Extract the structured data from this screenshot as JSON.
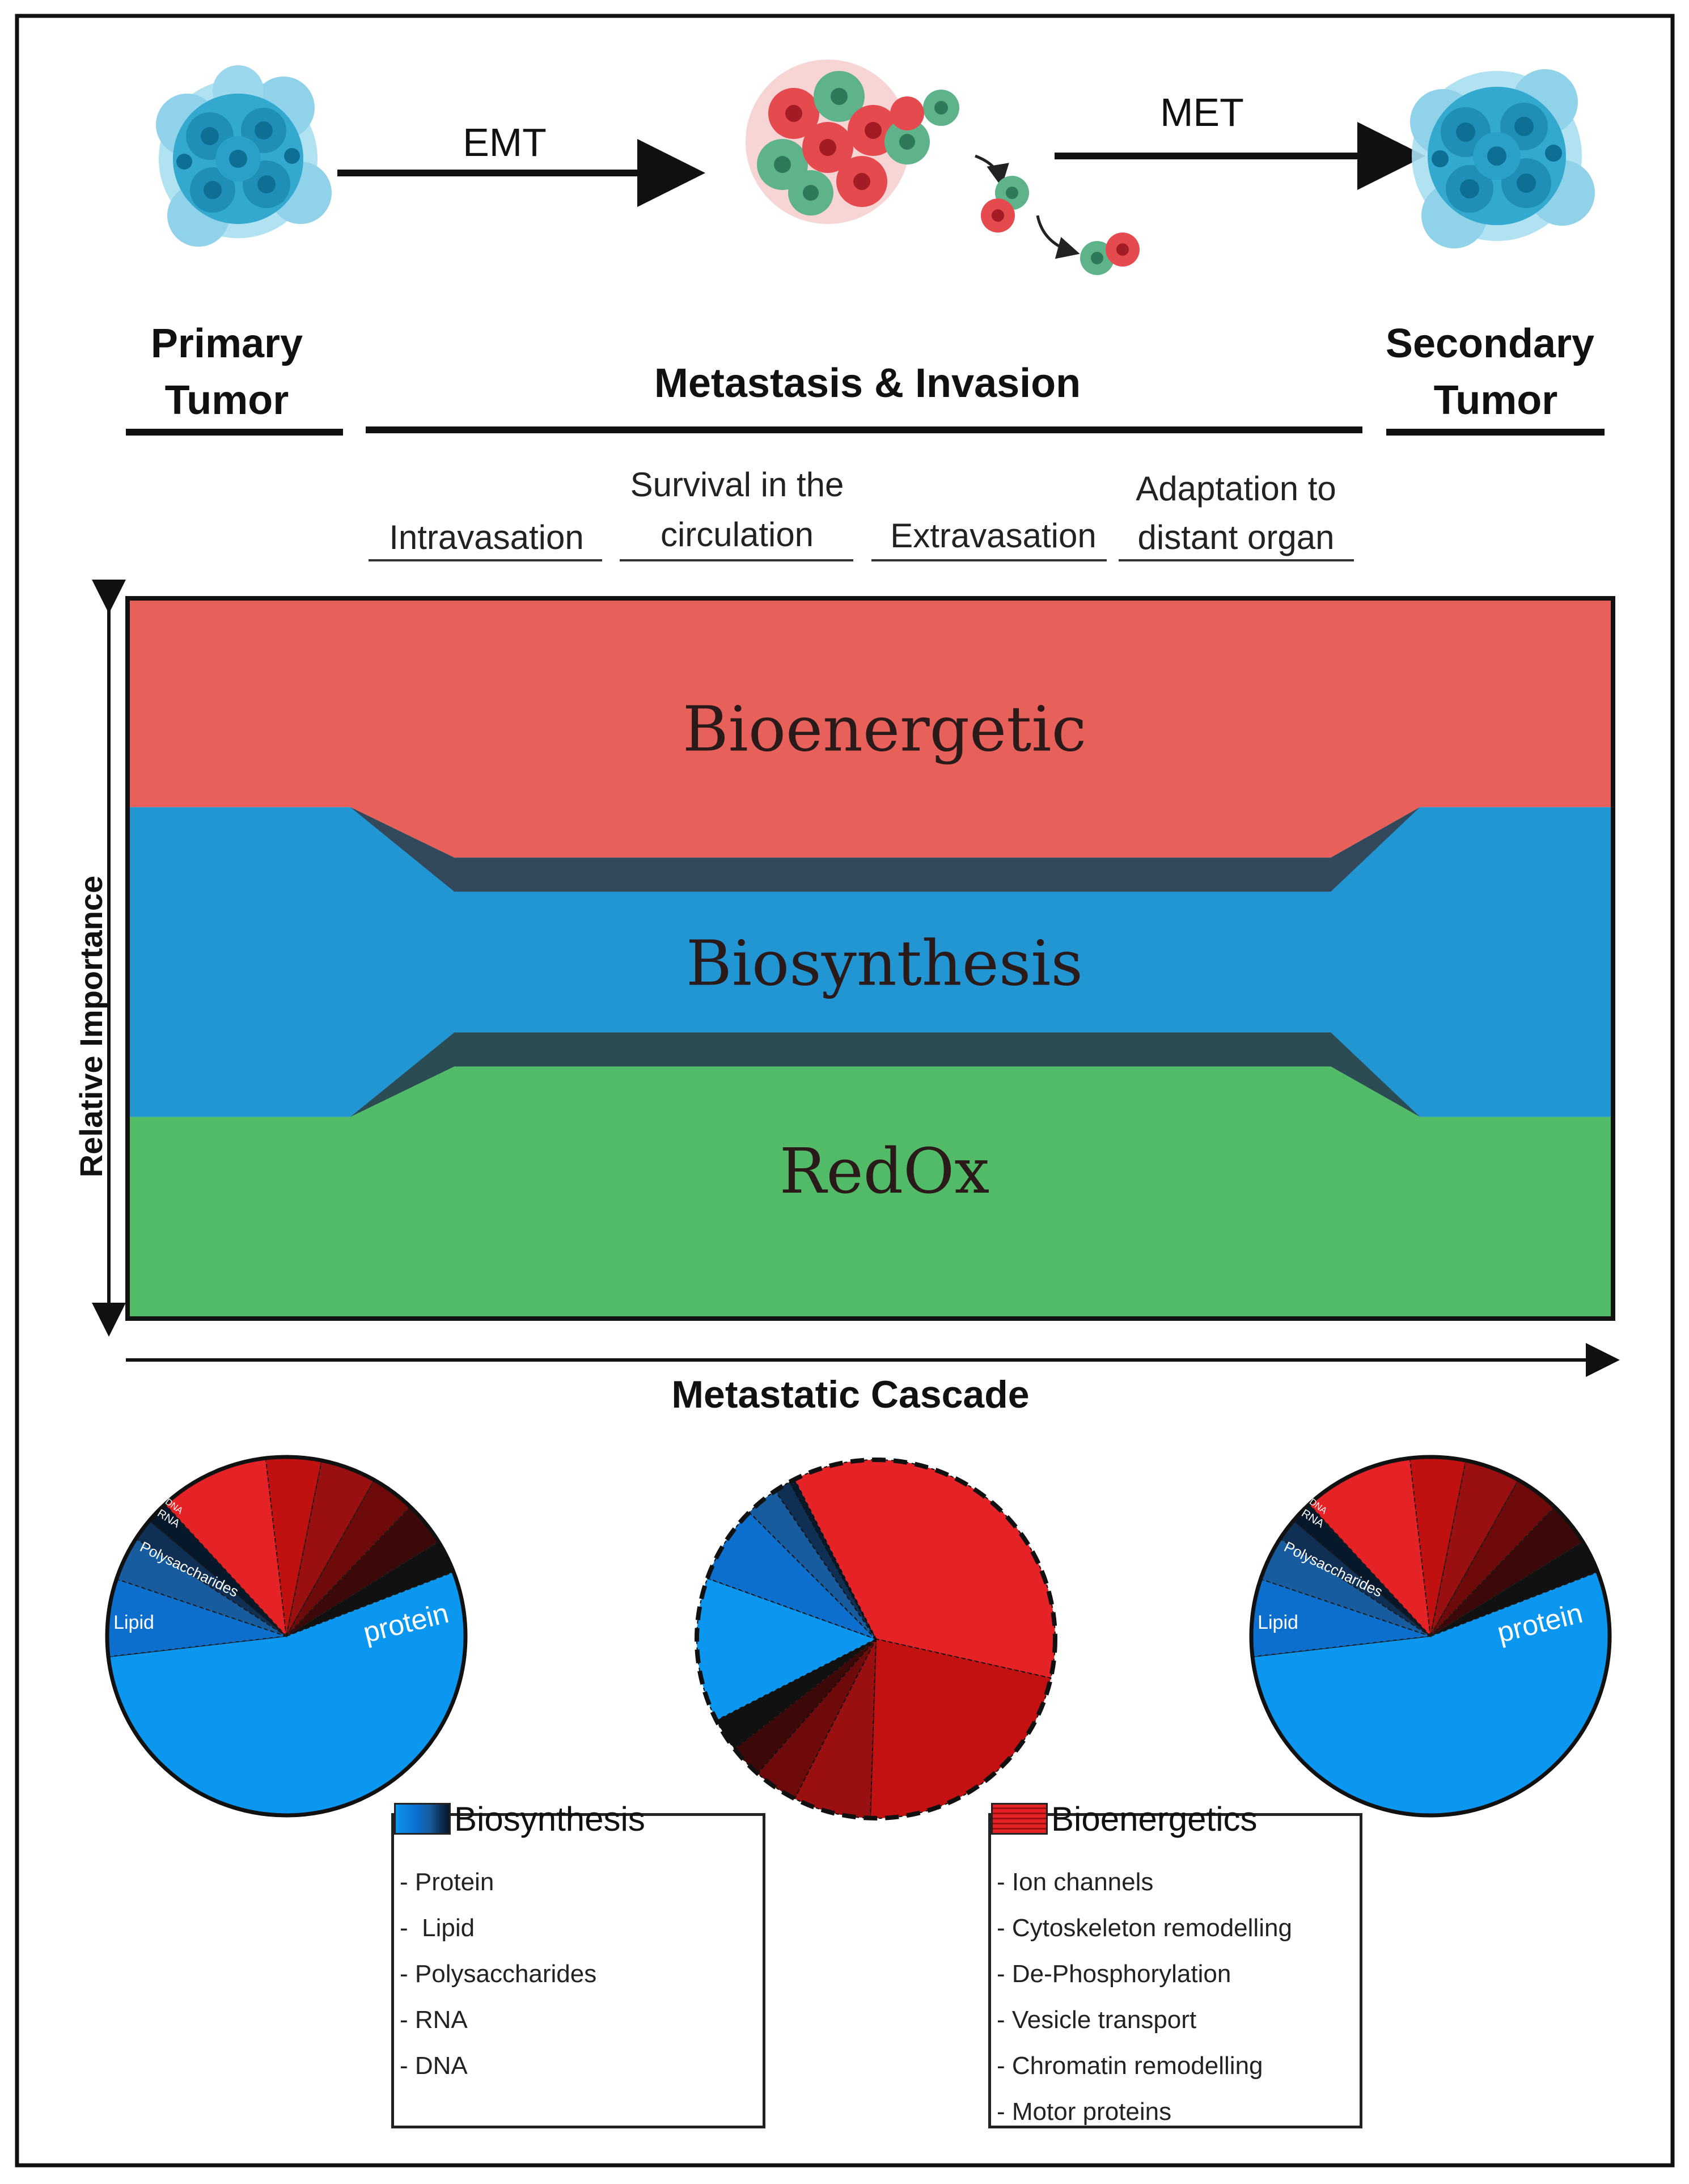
{
  "header": {
    "emt_label": "EMT",
    "met_label": "MET",
    "primary_tumor": [
      "Primary",
      "Tumor"
    ],
    "metastasis_invasion": "Metastasis & Invasion",
    "secondary_tumor": [
      "Secondary",
      "Tumor"
    ]
  },
  "stages": [
    {
      "lines": [
        "Intravasation"
      ]
    },
    {
      "lines": [
        "Survival in the",
        "circulation"
      ]
    },
    {
      "lines": [
        "Extravasation"
      ]
    },
    {
      "lines": [
        "Adaptation to",
        "distant organ"
      ]
    }
  ],
  "area_chart": {
    "y_axis_label": "Relative Importance",
    "x_axis_label": "Metastatic Cascade",
    "bands": [
      {
        "name": "Bioenergetic",
        "color": "#e8605a"
      },
      {
        "name": "Biosynthesis",
        "color": "#2295d3"
      },
      {
        "name": "RedOx",
        "color": "#52bb67"
      }
    ]
  },
  "chart_data": [
    {
      "type": "area",
      "title": "",
      "xlabel": "Metastatic Cascade",
      "ylabel": "Relative Importance",
      "categories": [
        "Primary Tumor",
        "Intravasation",
        "Survival in the circulation",
        "Extravasation",
        "Adaptation to distant organ",
        "Secondary Tumor"
      ],
      "x": [
        0,
        0.15,
        0.22,
        0.81,
        0.87,
        1.0
      ],
      "ylim": [
        0,
        1
      ],
      "series": [
        {
          "name": "RedOx",
          "values": [
            0.28,
            0.28,
            0.35,
            0.35,
            0.28,
            0.28
          ]
        },
        {
          "name": "Biosynthesis",
          "values": [
            0.43,
            0.43,
            0.29,
            0.29,
            0.43,
            0.43
          ]
        },
        {
          "name": "Bioenergetic",
          "values": [
            0.29,
            0.29,
            0.36,
            0.36,
            0.29,
            0.29
          ]
        }
      ]
    },
    {
      "type": "pie",
      "title": "Primary Tumor",
      "labels": [
        "protein",
        "Lipid",
        "Polysaccharides",
        "RNA",
        "DNA",
        "Ion channels",
        "Cytoskeleton remodelling",
        "De-Phosphorylation",
        "Vesicle transport",
        "Chromatin remodelling",
        "Motor proteins"
      ],
      "values": [
        54,
        7,
        4,
        2,
        2,
        10,
        5,
        5,
        4,
        4,
        3
      ],
      "colors": [
        "#0b96ef",
        "#0c6fcd",
        "#175c9e",
        "#0f2f55",
        "#07182b",
        "#e52327",
        "#c01010",
        "#9a0f0f",
        "#6e0a0a",
        "#3d0808",
        "#111111"
      ]
    },
    {
      "type": "pie",
      "title": "Metastasis & Invasion",
      "labels": [
        "Ion channels",
        "Cytoskeleton remodelling",
        "De-Phosphorylation",
        "Vesicle transport",
        "Chromatin remodelling",
        "Motor proteins",
        "protein",
        "Lipid",
        "Polysaccharides",
        "RNA",
        "DNA"
      ],
      "values": [
        36,
        22,
        7,
        4,
        3,
        3,
        13,
        7,
        3,
        1.5,
        0.5
      ],
      "colors": [
        "#e52327",
        "#c31111",
        "#9a0f0f",
        "#6e0a0a",
        "#3d0808",
        "#111111",
        "#0b96ef",
        "#0c6fcd",
        "#175c9e",
        "#0f2f55",
        "#07182b"
      ]
    },
    {
      "type": "pie",
      "title": "Secondary Tumor",
      "labels": [
        "protein",
        "Lipid",
        "Polysaccharides",
        "RNA",
        "DNA",
        "Ion channels",
        "Cytoskeleton remodelling",
        "De-Phosphorylation",
        "Vesicle transport",
        "Chromatin remodelling",
        "Motor proteins"
      ],
      "values": [
        54,
        7,
        4,
        2,
        2,
        10,
        5,
        5,
        4,
        4,
        3
      ],
      "colors": [
        "#0b96ef",
        "#0c6fcd",
        "#175c9e",
        "#0f2f55",
        "#07182b",
        "#e52327",
        "#c01010",
        "#9a0f0f",
        "#6e0a0a",
        "#3d0808",
        "#111111"
      ]
    }
  ],
  "legend_biosynthesis": {
    "title": "Biosynthesis",
    "items": [
      "- Protein",
      "-  Lipid",
      "- Polysaccharides",
      "- RNA",
      "- DNA"
    ]
  },
  "legend_bioenergetics": {
    "title": "Bioenergetics",
    "items": [
      "- Ion channels",
      "- Cytoskeleton remodelling",
      "- De-Phosphorylation",
      "- Vesicle transport",
      "- Chromatin remodelling",
      "- Motor proteins"
    ]
  }
}
